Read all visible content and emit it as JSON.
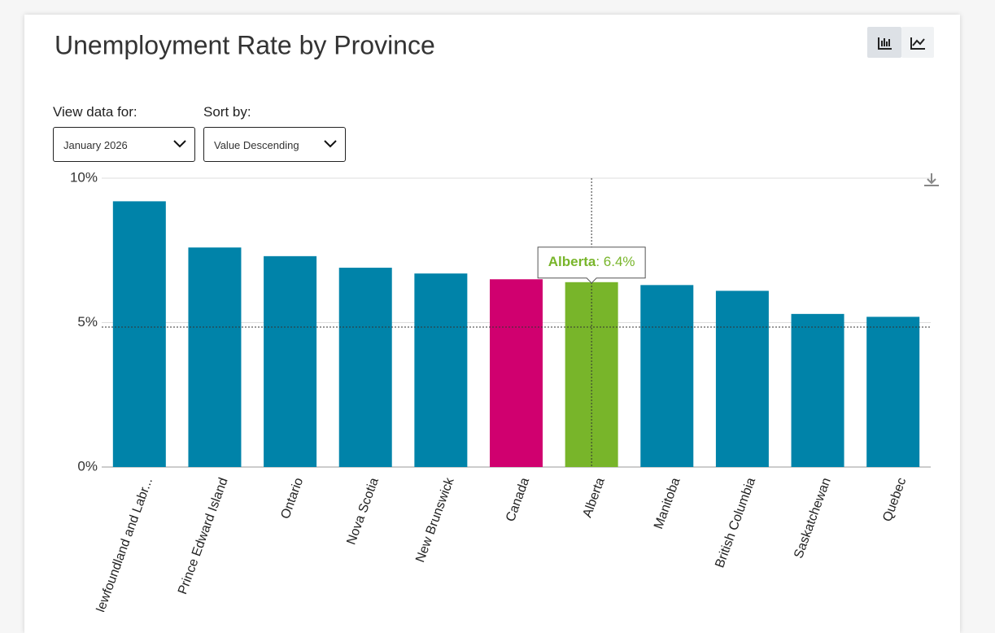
{
  "chart_data": {
    "type": "bar",
    "title": "Unemployment Rate by Province",
    "categories": [
      "Newfoundland and Labr...",
      "Prince Edward Island",
      "Ontario",
      "Nova Scotia",
      "New Brunswick",
      "Canada",
      "Alberta",
      "Manitoba",
      "British Columbia",
      "Saskatchewan",
      "Quebec"
    ],
    "values": [
      9.2,
      7.6,
      7.3,
      6.9,
      6.7,
      6.5,
      6.4,
      6.3,
      6.1,
      5.3,
      5.2
    ],
    "colors": [
      "#0083a9",
      "#0083a9",
      "#0083a9",
      "#0083a9",
      "#0083a9",
      "#d0006f",
      "#78b52a",
      "#0083a9",
      "#0083a9",
      "#0083a9",
      "#0083a9"
    ],
    "ylim": [
      0,
      10
    ],
    "yticks": [
      {
        "value": 0,
        "label": "0%"
      },
      {
        "value": 5,
        "label": "5%"
      },
      {
        "value": 10,
        "label": "10%"
      }
    ],
    "tooltip": {
      "category": "Alberta",
      "value_label": "6.4%"
    }
  },
  "controls": {
    "view_label": "View data for:",
    "view_value": "January 2026",
    "sort_label": "Sort by:",
    "sort_value": "Value Descending"
  }
}
